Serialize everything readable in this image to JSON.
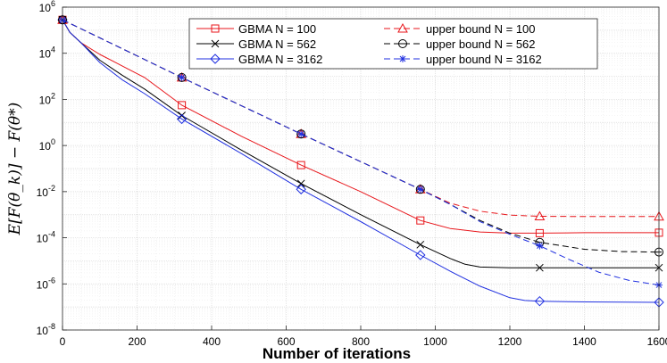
{
  "chart_data": {
    "type": "line",
    "xlabel": "Number of iterations",
    "ylabel": "E[F(θ_k)] − F(θ*)",
    "xlim": [
      0,
      1600
    ],
    "ylim_log10": [
      -8,
      6
    ],
    "x_ticks": [
      0,
      200,
      400,
      600,
      800,
      1000,
      1200,
      1400,
      1600
    ],
    "y_ticks": [
      {
        "base": "10",
        "exp": "-8",
        "value": -8
      },
      {
        "base": "10",
        "exp": "-6",
        "value": -6
      },
      {
        "base": "10",
        "exp": "-4",
        "value": -4
      },
      {
        "base": "10",
        "exp": "-2",
        "value": -2
      },
      {
        "base": "10",
        "exp": "0",
        "value": 0
      },
      {
        "base": "10",
        "exp": "2",
        "value": 2
      },
      {
        "base": "10",
        "exp": "4",
        "value": 4
      },
      {
        "base": "10",
        "exp": "6",
        "value": 6
      }
    ],
    "grid": true,
    "legend_position": "top-right",
    "series": [
      {
        "name": "GBMA N = 100",
        "color": "#e8161b",
        "dash": "solid",
        "marker": "square",
        "x": [
          0,
          20,
          50,
          100,
          160,
          220,
          320,
          480,
          640,
          800,
          960,
          1040,
          1120,
          1200,
          1280,
          1400,
          1600
        ],
        "log10_y": [
          5.45,
          4.9,
          4.45,
          3.95,
          3.45,
          2.95,
          1.75,
          0.4,
          -0.85,
          -2.0,
          -3.25,
          -3.6,
          -3.75,
          -3.8,
          -3.8,
          -3.78,
          -3.78
        ],
        "marker_x": [
          0,
          320,
          640,
          960,
          1280,
          1600
        ],
        "marker_log10_y": [
          5.45,
          1.75,
          -0.85,
          -3.25,
          -3.8,
          -3.78
        ]
      },
      {
        "name": "GBMA N = 562",
        "color": "#000000",
        "dash": "solid",
        "marker": "x",
        "x": [
          0,
          20,
          50,
          100,
          160,
          220,
          320,
          480,
          640,
          800,
          960,
          1040,
          1080,
          1120,
          1200,
          1280,
          1400,
          1600
        ],
        "log10_y": [
          5.45,
          4.9,
          4.45,
          3.7,
          3.05,
          2.45,
          1.3,
          -0.2,
          -1.65,
          -3.0,
          -4.3,
          -4.9,
          -5.15,
          -5.27,
          -5.3,
          -5.3,
          -5.3,
          -5.3
        ],
        "marker_x": [
          0,
          320,
          640,
          960,
          1280,
          1600
        ],
        "marker_log10_y": [
          5.45,
          1.3,
          -1.65,
          -4.3,
          -5.3,
          -5.3
        ]
      },
      {
        "name": "GBMA N = 3162",
        "color": "#1f2fe0",
        "dash": "solid",
        "marker": "diamond",
        "x": [
          0,
          20,
          50,
          100,
          160,
          220,
          320,
          480,
          640,
          800,
          960,
          1040,
          1120,
          1200,
          1240,
          1280,
          1400,
          1600
        ],
        "log10_y": [
          5.45,
          4.9,
          4.45,
          3.6,
          2.85,
          2.25,
          1.15,
          -0.35,
          -1.9,
          -3.3,
          -4.75,
          -5.45,
          -6.1,
          -6.6,
          -6.72,
          -6.75,
          -6.78,
          -6.8
        ],
        "marker_x": [
          0,
          320,
          640,
          960,
          1280,
          1600
        ],
        "marker_log10_y": [
          5.45,
          1.15,
          -1.9,
          -4.75,
          -6.75,
          -6.8
        ]
      },
      {
        "name": "upper bound N = 100",
        "color": "#e8161b",
        "dash": "dashed",
        "marker": "triangle",
        "x": [
          0,
          320,
          640,
          960,
          1040,
          1120,
          1200,
          1280,
          1400,
          1600
        ],
        "log10_y": [
          5.45,
          2.95,
          0.5,
          -1.9,
          -2.5,
          -2.85,
          -3.02,
          -3.07,
          -3.08,
          -3.08
        ],
        "marker_x": [
          0,
          320,
          640,
          960,
          1280,
          1600
        ],
        "marker_log10_y": [
          5.45,
          2.95,
          0.5,
          -1.9,
          -3.07,
          -3.08
        ]
      },
      {
        "name": "upper bound N = 562",
        "color": "#000000",
        "dash": "dashed",
        "marker": "circle-bar",
        "x": [
          0,
          320,
          640,
          960,
          1040,
          1120,
          1200,
          1280,
          1400,
          1500,
          1600
        ],
        "log10_y": [
          5.45,
          2.95,
          0.5,
          -1.9,
          -2.55,
          -3.25,
          -3.8,
          -4.2,
          -4.5,
          -4.6,
          -4.62
        ],
        "marker_x": [
          0,
          320,
          640,
          960,
          1280,
          1600
        ],
        "marker_log10_y": [
          5.45,
          2.95,
          0.5,
          -1.9,
          -4.2,
          -4.62
        ]
      },
      {
        "name": "upper bound N = 3162",
        "color": "#1f2fe0",
        "dash": "dashed",
        "marker": "star",
        "x": [
          0,
          320,
          640,
          960,
          1040,
          1120,
          1200,
          1280,
          1360,
          1440,
          1520,
          1600
        ],
        "log10_y": [
          5.45,
          2.95,
          0.5,
          -1.9,
          -2.55,
          -3.3,
          -3.85,
          -4.35,
          -4.95,
          -5.5,
          -5.85,
          -6.05
        ],
        "marker_x": [
          0,
          320,
          640,
          960,
          1280,
          1600
        ],
        "marker_log10_y": [
          5.45,
          2.95,
          0.5,
          -1.9,
          -4.35,
          -6.05
        ]
      }
    ]
  }
}
